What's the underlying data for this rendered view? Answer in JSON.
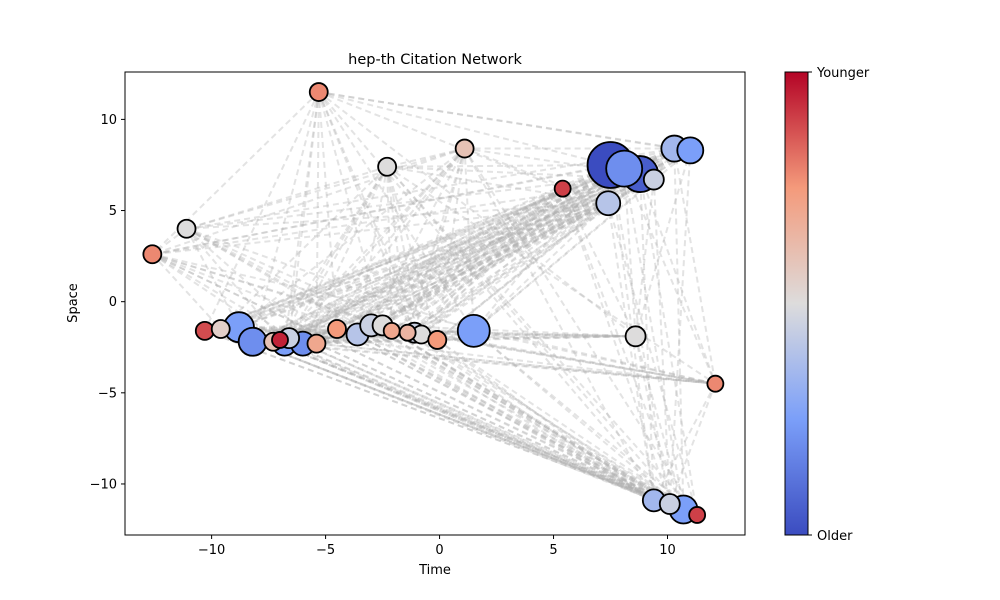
{
  "chart_data": {
    "type": "scatter",
    "title": "hep-th Citation Network",
    "xlabel": "Time",
    "ylabel": "Space",
    "xlim": [
      -13.8,
      13.4
    ],
    "ylim": [
      -12.8,
      12.6
    ],
    "x_ticks": [
      -10,
      -5,
      0,
      5,
      10
    ],
    "y_ticks": [
      -10,
      -5,
      0,
      5,
      10
    ],
    "grid": false,
    "colorbar": {
      "colormap": "coolwarm",
      "top_label": "Younger",
      "bottom_label": "Older"
    },
    "edge_style": {
      "color": "#b0b0b0",
      "dashed": true
    },
    "nodes": [
      {
        "x": -5.3,
        "y": 11.5,
        "size": 9,
        "age": 0.78
      },
      {
        "x": 1.1,
        "y": 8.4,
        "size": 9,
        "age": 0.6
      },
      {
        "x": -2.3,
        "y": 7.4,
        "size": 9,
        "age": 0.5
      },
      {
        "x": 5.4,
        "y": 6.2,
        "size": 8,
        "age": 0.9
      },
      {
        "x": 7.5,
        "y": 7.5,
        "size": 23,
        "age": 0.0
      },
      {
        "x": 8.8,
        "y": 7.0,
        "size": 18,
        "age": 0.05
      },
      {
        "x": 8.1,
        "y": 7.3,
        "size": 18,
        "age": 0.2
      },
      {
        "x": 9.4,
        "y": 6.7,
        "size": 10,
        "age": 0.45
      },
      {
        "x": 7.4,
        "y": 5.4,
        "size": 12,
        "age": 0.4
      },
      {
        "x": 10.3,
        "y": 8.4,
        "size": 13,
        "age": 0.35
      },
      {
        "x": 11.0,
        "y": 8.3,
        "size": 13,
        "age": 0.25
      },
      {
        "x": -11.1,
        "y": 4.0,
        "size": 9,
        "age": 0.5
      },
      {
        "x": -12.6,
        "y": 2.6,
        "size": 9,
        "age": 0.78
      },
      {
        "x": -10.3,
        "y": -1.6,
        "size": 9,
        "age": 0.88
      },
      {
        "x": -9.6,
        "y": -1.5,
        "size": 9,
        "age": 0.55
      },
      {
        "x": -8.8,
        "y": -1.4,
        "size": 15,
        "age": 0.25
      },
      {
        "x": -8.2,
        "y": -2.2,
        "size": 14,
        "age": 0.2
      },
      {
        "x": -7.3,
        "y": -2.2,
        "size": 9,
        "age": 0.6
      },
      {
        "x": -7.0,
        "y": -2.1,
        "size": 8,
        "age": 0.95
      },
      {
        "x": -6.8,
        "y": -2.3,
        "size": 12,
        "age": 0.25
      },
      {
        "x": -6.6,
        "y": -2.0,
        "size": 10,
        "age": 0.45
      },
      {
        "x": -6.0,
        "y": -2.3,
        "size": 12,
        "age": 0.2
      },
      {
        "x": -5.4,
        "y": -2.3,
        "size": 9,
        "age": 0.7
      },
      {
        "x": -4.5,
        "y": -1.5,
        "size": 9,
        "age": 0.75
      },
      {
        "x": -3.6,
        "y": -1.8,
        "size": 11,
        "age": 0.4
      },
      {
        "x": -3.0,
        "y": -1.3,
        "size": 11,
        "age": 0.45
      },
      {
        "x": -2.5,
        "y": -1.3,
        "size": 10,
        "age": 0.5
      },
      {
        "x": -2.1,
        "y": -1.6,
        "size": 8,
        "age": 0.7
      },
      {
        "x": -1.4,
        "y": -1.7,
        "size": 8,
        "age": 0.65
      },
      {
        "x": -1.1,
        "y": -1.7,
        "size": 10,
        "age": 0.45
      },
      {
        "x": -0.8,
        "y": -1.8,
        "size": 9,
        "age": 0.5
      },
      {
        "x": -0.1,
        "y": -2.1,
        "size": 9,
        "age": 0.75
      },
      {
        "x": 1.5,
        "y": -1.6,
        "size": 16,
        "age": 0.25
      },
      {
        "x": 8.6,
        "y": -1.9,
        "size": 10,
        "age": 0.5
      },
      {
        "x": 12.1,
        "y": -4.5,
        "size": 8,
        "age": 0.78
      },
      {
        "x": 9.4,
        "y": -10.9,
        "size": 11,
        "age": 0.35
      },
      {
        "x": 10.1,
        "y": -11.1,
        "size": 10,
        "age": 0.45
      },
      {
        "x": 10.7,
        "y": -11.4,
        "size": 14,
        "age": 0.25
      },
      {
        "x": 11.3,
        "y": -11.7,
        "size": 8,
        "age": 0.9
      }
    ]
  }
}
